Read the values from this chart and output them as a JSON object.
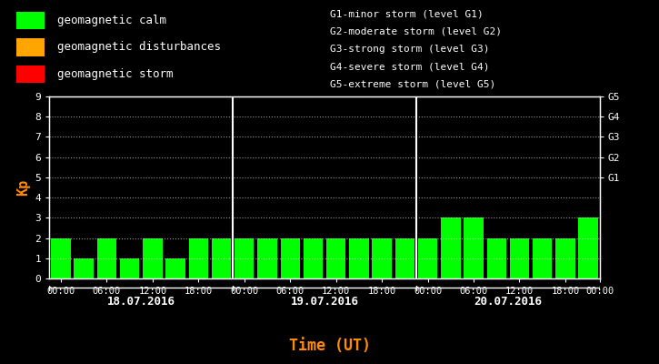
{
  "background_color": "#000000",
  "bar_color": "#00ff00",
  "text_color": "#ffffff",
  "kp_values": [
    2,
    1,
    2,
    1,
    2,
    1,
    2,
    2,
    2,
    2,
    2,
    2,
    2,
    2,
    2,
    2,
    2,
    3,
    3,
    2,
    2,
    2,
    2,
    3
  ],
  "day_labels": [
    "18.07.2016",
    "19.07.2016",
    "20.07.2016"
  ],
  "day_dividers": [
    8,
    16
  ],
  "ylim": [
    0,
    9
  ],
  "yticks": [
    0,
    1,
    2,
    3,
    4,
    5,
    6,
    7,
    8,
    9
  ],
  "ylabel": "Kp",
  "ylabel_color": "#ff8c00",
  "xlabel": "Time (UT)",
  "xlabel_color": "#ff8c00",
  "right_labels": [
    {
      "text": "G5",
      "y": 9
    },
    {
      "text": "G4",
      "y": 8
    },
    {
      "text": "G3",
      "y": 7
    },
    {
      "text": "G2",
      "y": 6
    },
    {
      "text": "G1",
      "y": 5
    }
  ],
  "legend_items": [
    {
      "color": "#00ff00",
      "label": "geomagnetic calm"
    },
    {
      "color": "#ffa500",
      "label": "geomagnetic disturbances"
    },
    {
      "color": "#ff0000",
      "label": "geomagnetic storm"
    }
  ],
  "storm_levels_text": [
    "G1-minor storm (level G1)",
    "G2-moderate storm (level G2)",
    "G3-strong storm (level G3)",
    "G4-severe storm (level G4)",
    "G5-extreme storm (level G5)"
  ],
  "xtick_positions": [
    0,
    2,
    4,
    6,
    8,
    10,
    12,
    14,
    16,
    18,
    20,
    22,
    23.5
  ],
  "xtick_labels": [
    "00:00",
    "06:00",
    "12:00",
    "18:00",
    "00:00",
    "06:00",
    "12:00",
    "18:00",
    "00:00",
    "06:00",
    "12:00",
    "18:00",
    "00:00"
  ],
  "n_days": 3,
  "n_bars_per_day": 8
}
